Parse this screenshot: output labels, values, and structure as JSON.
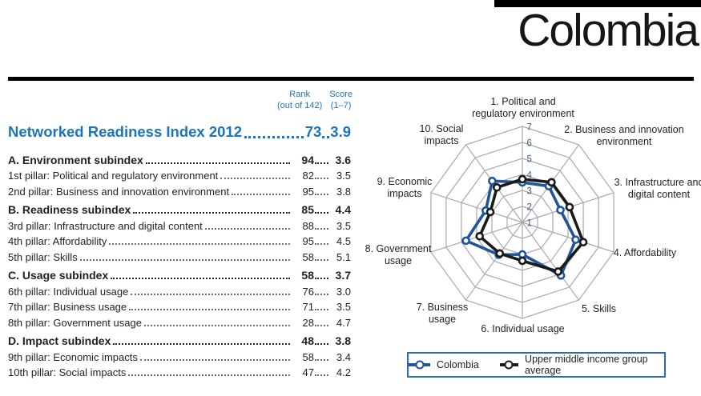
{
  "header": {
    "country": "Colombia"
  },
  "table": {
    "col_headers": {
      "rank": "Rank",
      "rank_sub": "(out of 142)",
      "score": "Score",
      "score_sub": "(1–7)"
    },
    "title_row": {
      "label": "Networked Readiness Index 2012",
      "rank": "73",
      "score": "3.9"
    },
    "rows": [
      {
        "type": "section",
        "label": "A. Environment subindex",
        "rank": "94",
        "score": "3.6"
      },
      {
        "type": "pillar",
        "label": "1st pillar: Political and regulatory environment",
        "rank": "82",
        "score": "3.5"
      },
      {
        "type": "pillar",
        "label": "2nd pillar: Business and innovation environment",
        "rank": "95",
        "score": "3.8"
      },
      {
        "type": "section",
        "label": "B. Readiness subindex",
        "rank": "85",
        "score": "4.4"
      },
      {
        "type": "pillar",
        "label": "3rd pillar: Infrastructure and digital content",
        "rank": "88",
        "score": "3.5"
      },
      {
        "type": "pillar",
        "label": "4th pillar: Affordability",
        "rank": "95",
        "score": "4.5"
      },
      {
        "type": "pillar",
        "label": "5th pillar: Skills",
        "rank": "58",
        "score": "5.1"
      },
      {
        "type": "section",
        "label": "C. Usage subindex",
        "rank": "58",
        "score": "3.7"
      },
      {
        "type": "pillar",
        "label": "6th pillar: Individual usage",
        "rank": "76",
        "score": "3.0"
      },
      {
        "type": "pillar",
        "label": "7th pillar: Business usage",
        "rank": "71",
        "score": "3.5"
      },
      {
        "type": "pillar",
        "label": "8th pillar: Government usage",
        "rank": "28",
        "score": "4.7"
      },
      {
        "type": "section",
        "label": "D. Impact subindex",
        "rank": "48",
        "score": "3.8"
      },
      {
        "type": "pillar",
        "label": "9th pillar: Economic impacts",
        "rank": "58",
        "score": "3.4"
      },
      {
        "type": "pillar",
        "label": "10th pillar: Social impacts",
        "rank": "47",
        "score": "4.2"
      }
    ]
  },
  "chart_data": {
    "type": "radar",
    "axis_range": [
      1,
      7
    ],
    "tick_labels": [
      "1",
      "2",
      "3",
      "4",
      "5",
      "6",
      "7"
    ],
    "grid": true,
    "legend_position": "bottom",
    "categories": [
      "1. Political and\nregulatory environment",
      "2. Business and innovation\nenvironment",
      "3. Infrastructure and\ndigital content",
      "4. Affordability",
      "5. Skills",
      "6. Individual usage",
      "7. Business\nusage",
      "8. Government\nusage",
      "9. Economic\nimpacts",
      "10. Social\nimpacts"
    ],
    "series": [
      {
        "name": "Colombia",
        "color": "#20549b",
        "values": [
          3.5,
          3.8,
          3.5,
          4.5,
          5.1,
          3.0,
          3.5,
          4.7,
          3.4,
          4.2
        ]
      },
      {
        "name": "Upper middle income group average",
        "color": "#1a1a1a",
        "values": [
          3.7,
          4.1,
          4.1,
          5.0,
          4.8,
          3.4,
          3.4,
          3.8,
          3.1,
          3.7
        ]
      }
    ]
  },
  "colors": {
    "heading_blue": "#1b75bc",
    "grid_gray": "#a7a9ac",
    "tick_blue": "#3d5c87",
    "legend_border": "#2e6da4"
  }
}
